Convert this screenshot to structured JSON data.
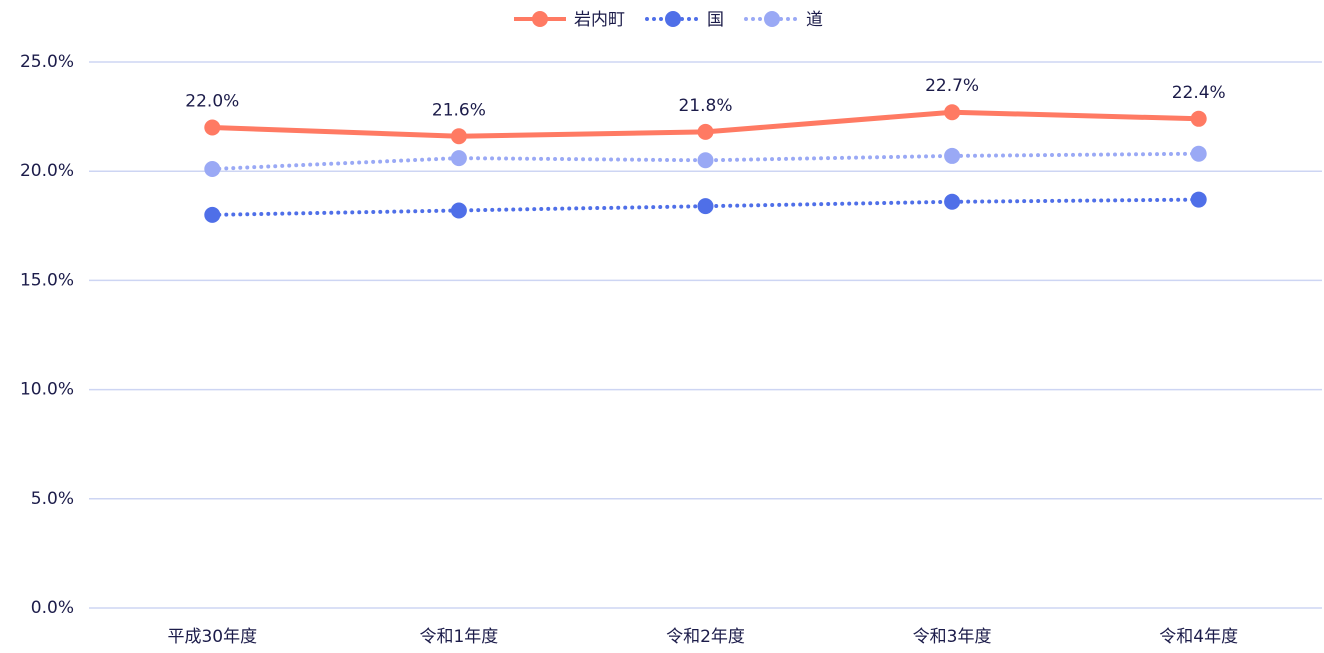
{
  "chart_data": {
    "type": "line",
    "categories": [
      "平成30年度",
      "令和1年度",
      "令和2年度",
      "令和3年度",
      "令和4年度"
    ],
    "series": [
      {
        "name": "岩内町",
        "color": "#ff7a63",
        "line_style": "solid",
        "values": [
          22.0,
          21.6,
          21.8,
          22.7,
          22.4
        ],
        "value_labels": [
          "22.0%",
          "21.6%",
          "21.8%",
          "22.7%",
          "22.4%"
        ]
      },
      {
        "name": "国",
        "color": "#4f6fe8",
        "line_style": "dotted",
        "values": [
          18.0,
          18.2,
          18.4,
          18.6,
          18.7
        ]
      },
      {
        "name": "道",
        "color": "#9aa9f5",
        "line_style": "dotted",
        "values": [
          20.1,
          20.6,
          20.5,
          20.7,
          20.8
        ]
      }
    ],
    "ylim": [
      0,
      25
    ],
    "yticks": [
      {
        "value": 0,
        "label": "0.0%"
      },
      {
        "value": 5,
        "label": "5.0%"
      },
      {
        "value": 10,
        "label": "10.0%"
      },
      {
        "value": 15,
        "label": "15.0%"
      },
      {
        "value": 20,
        "label": "20.0%"
      },
      {
        "value": 25,
        "label": "25.0%"
      }
    ],
    "grid": true,
    "legend": "top"
  }
}
